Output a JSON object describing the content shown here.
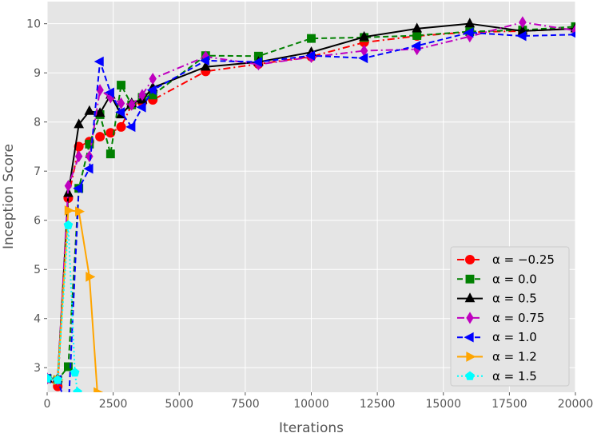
{
  "chart_data": {
    "type": "line",
    "xlabel": "Iterations",
    "ylabel": "Inception Score",
    "xlim": [
      0,
      20000
    ],
    "ylim": [
      2.5,
      10.45
    ],
    "xticks": [
      0,
      2500,
      5000,
      7500,
      10000,
      12500,
      15000,
      17500,
      20000
    ],
    "yticks": [
      3,
      4,
      5,
      6,
      7,
      8,
      9,
      10
    ],
    "grid": true,
    "background": "#e5e5e5",
    "legend_position": "lower-right",
    "series": [
      {
        "name": "α = −0.25",
        "color": "#ff0000",
        "linestyle": "dashdot",
        "marker": "circle",
        "x": [
          0,
          400,
          800,
          1200,
          1600,
          2000,
          2400,
          2800,
          3200,
          3600,
          4000,
          6000,
          8000,
          10000,
          12000,
          14000,
          16000,
          18000,
          20000
        ],
        "y": [
          2.78,
          2.62,
          6.45,
          7.5,
          7.6,
          7.7,
          7.78,
          7.9,
          8.35,
          8.4,
          8.45,
          9.03,
          9.18,
          9.33,
          9.62,
          9.75,
          9.83,
          9.85,
          9.9
        ]
      },
      {
        "name": "α = 0.0",
        "color": "#008000",
        "linestyle": "dashed",
        "marker": "square",
        "x": [
          0,
          400,
          800,
          1200,
          1600,
          2000,
          2400,
          2800,
          3200,
          3600,
          4000,
          6000,
          8000,
          10000,
          12000,
          14000,
          16000,
          18000,
          20000
        ],
        "y": [
          2.78,
          2.75,
          3.02,
          6.65,
          7.55,
          8.15,
          7.35,
          8.75,
          8.35,
          8.5,
          8.55,
          9.35,
          9.34,
          9.7,
          9.72,
          9.76,
          9.84,
          9.87,
          9.94
        ]
      },
      {
        "name": "α = 0.5",
        "color": "#000000",
        "linestyle": "solid",
        "marker": "triangle-up",
        "x": [
          0,
          400,
          800,
          1200,
          1600,
          2000,
          2400,
          2800,
          3200,
          3600,
          4000,
          6000,
          8000,
          10000,
          12000,
          14000,
          16000,
          18000,
          20000
        ],
        "y": [
          2.78,
          2.78,
          6.55,
          7.95,
          8.22,
          8.18,
          8.55,
          8.15,
          8.38,
          8.45,
          8.7,
          9.12,
          9.22,
          9.42,
          9.73,
          9.9,
          10.0,
          9.85,
          9.9
        ]
      },
      {
        "name": "α = 0.75",
        "color": "#bf00bf",
        "linestyle": "dashdot",
        "marker": "diamond",
        "x": [
          0,
          400,
          800,
          1200,
          1600,
          2000,
          2400,
          2800,
          3200,
          3600,
          4000,
          6000,
          8000,
          10000,
          12000,
          14000,
          16000,
          18000,
          20000
        ],
        "y": [
          2.78,
          2.75,
          6.7,
          7.3,
          7.3,
          8.65,
          8.5,
          8.38,
          8.35,
          8.55,
          8.88,
          9.33,
          9.17,
          9.32,
          9.45,
          9.48,
          9.74,
          10.03,
          9.86
        ]
      },
      {
        "name": "α = 1.0",
        "color": "#0000ff",
        "linestyle": "dashed",
        "marker": "triangle-left",
        "x": [
          0,
          400,
          800,
          1200,
          1600,
          2000,
          2400,
          2800,
          3200,
          3600,
          4000,
          6000,
          8000,
          10000,
          12000,
          14000,
          16000,
          18000,
          20000
        ],
        "y": [
          2.78,
          2.75,
          2.1,
          6.65,
          7.05,
          9.23,
          8.6,
          8.2,
          7.9,
          8.3,
          8.65,
          9.25,
          9.22,
          9.35,
          9.3,
          9.55,
          9.82,
          9.75,
          9.78
        ]
      },
      {
        "name": "α = 1.2",
        "color": "#ffa500",
        "linestyle": "solid",
        "marker": "triangle-right",
        "x": [
          0,
          400,
          800,
          1200,
          1600,
          1900
        ],
        "y": [
          2.78,
          2.75,
          6.2,
          6.18,
          4.85,
          2.5
        ]
      },
      {
        "name": "α = 1.5",
        "color": "#00ffff",
        "linestyle": "dotted",
        "marker": "pentagon",
        "x": [
          0,
          400,
          800,
          1050,
          1150
        ],
        "y": [
          2.78,
          2.75,
          5.9,
          2.9,
          2.5
        ]
      }
    ]
  }
}
